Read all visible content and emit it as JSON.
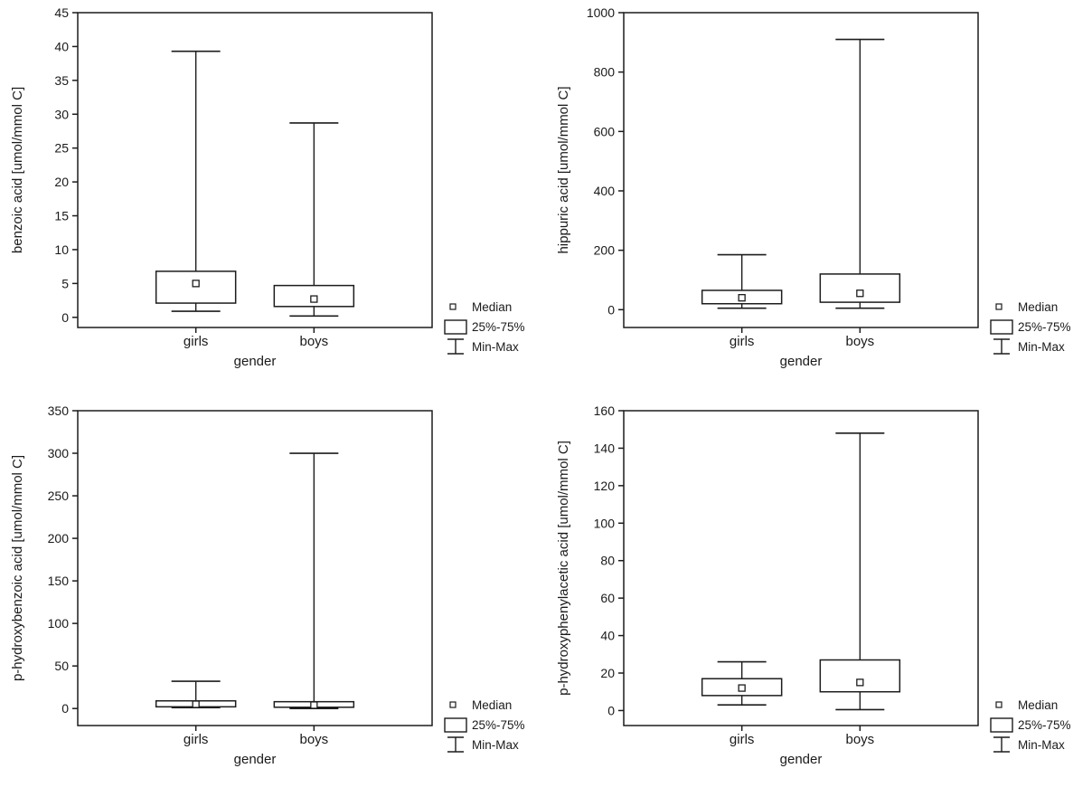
{
  "colors": {
    "stroke": "#1c1c1c",
    "background": "#ffffff",
    "text": "#1a1a1a"
  },
  "legend": {
    "items": [
      "Median",
      "25%-75%",
      "Min-Max"
    ]
  },
  "chart_data": [
    {
      "type": "boxplot",
      "ylabel": "benzoic acid [umol/mmol C]",
      "xlabel": "gender",
      "categories": [
        "girls",
        "boys"
      ],
      "ylim": [
        -1.5,
        45
      ],
      "yticks": [
        0,
        5,
        10,
        15,
        20,
        25,
        30,
        35,
        40,
        45
      ],
      "legend": [
        "Median",
        "25%-75%",
        "Min-Max"
      ],
      "series": [
        {
          "category": "girls",
          "min": 0.9,
          "q1": 2.1,
          "median": 5.0,
          "q3": 6.8,
          "max": 39.3
        },
        {
          "category": "boys",
          "min": 0.2,
          "q1": 1.6,
          "median": 2.7,
          "q3": 4.7,
          "max": 28.7
        }
      ]
    },
    {
      "type": "boxplot",
      "ylabel": "hippuric acid [umol/mmol C]",
      "xlabel": "gender",
      "categories": [
        "girls",
        "boys"
      ],
      "ylim": [
        -60,
        1000
      ],
      "yticks": [
        0,
        200,
        400,
        600,
        800,
        1000
      ],
      "legend": [
        "Median",
        "25%-75%",
        "Min-Max"
      ],
      "series": [
        {
          "category": "girls",
          "min": 5,
          "q1": 20,
          "median": 40,
          "q3": 65,
          "max": 185
        },
        {
          "category": "boys",
          "min": 5,
          "q1": 25,
          "median": 55,
          "q3": 120,
          "max": 910
        }
      ]
    },
    {
      "type": "boxplot",
      "ylabel": "p-hydroxybenzoic acid [umol/mmol C]",
      "xlabel": "gender",
      "categories": [
        "girls",
        "boys"
      ],
      "ylim": [
        -20,
        350
      ],
      "yticks": [
        0,
        50,
        100,
        150,
        200,
        250,
        300,
        350
      ],
      "legend": [
        "Median",
        "25%-75%",
        "Min-Max"
      ],
      "series": [
        {
          "category": "girls",
          "min": 1,
          "q1": 2,
          "median": 5,
          "q3": 9,
          "max": 32
        },
        {
          "category": "boys",
          "min": 0,
          "q1": 1.5,
          "median": 4,
          "q3": 8,
          "max": 300
        }
      ]
    },
    {
      "type": "boxplot",
      "ylabel": "p-hydroxyphenylacetic acid [umol/mmol C]",
      "xlabel": "gender",
      "categories": [
        "girls",
        "boys"
      ],
      "ylim": [
        -8,
        160
      ],
      "yticks": [
        0,
        20,
        40,
        60,
        80,
        100,
        120,
        140,
        160
      ],
      "legend": [
        "Median",
        "25%-75%",
        "Min-Max"
      ],
      "series": [
        {
          "category": "girls",
          "min": 3,
          "q1": 8,
          "median": 12,
          "q3": 17,
          "max": 26
        },
        {
          "category": "boys",
          "min": 0.5,
          "q1": 10,
          "median": 15,
          "q3": 27,
          "max": 148
        }
      ]
    }
  ]
}
